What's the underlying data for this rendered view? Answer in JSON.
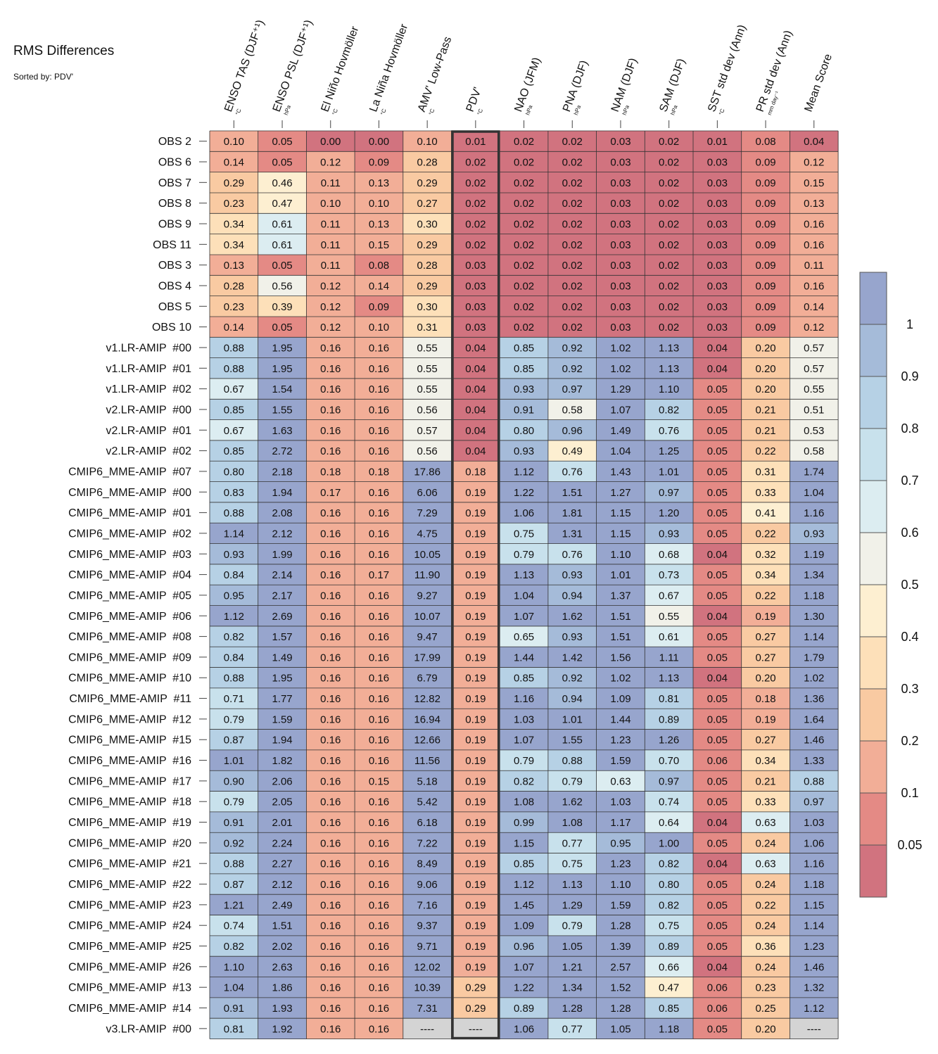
{
  "chart_data": {
    "type": "heatmap",
    "title": "RMS Differences",
    "subtitle": "Sorted by: PDV'",
    "highlight_column": "PDV'",
    "columns": [
      {
        "label": "ENSO TAS (DJF⁺¹)",
        "unit": "°C"
      },
      {
        "label": "ENSO PSL (DJF⁺¹)",
        "unit": "hPa"
      },
      {
        "label": "El Niño Hovmöller",
        "unit": "°C"
      },
      {
        "label": "La Niña Hovmöller",
        "unit": "°C"
      },
      {
        "label": "AMV' Low-Pass",
        "unit": "°C"
      },
      {
        "label": "PDV'",
        "unit": "°C"
      },
      {
        "label": "NAO (JFM)",
        "unit": "hPa"
      },
      {
        "label": "PNA (DJF)",
        "unit": "hPa"
      },
      {
        "label": "NAM (DJF)",
        "unit": "hPa"
      },
      {
        "label": "SAM (DJF)",
        "unit": "hPa"
      },
      {
        "label": "SST std dev (Ann)",
        "unit": "°C"
      },
      {
        "label": "PR std dev (Ann)",
        "unit": "mm day⁻¹"
      },
      {
        "label": "Mean Score",
        "unit": ""
      }
    ],
    "rows": [
      {
        "label": "OBS 2",
        "values": [
          "0.10",
          "0.05",
          "0.00",
          "0.00",
          "0.10",
          "0.01",
          "0.02",
          "0.02",
          "0.03",
          "0.02",
          "0.01",
          "0.08",
          "0.04"
        ]
      },
      {
        "label": "OBS 6",
        "values": [
          "0.14",
          "0.05",
          "0.12",
          "0.09",
          "0.28",
          "0.02",
          "0.02",
          "0.02",
          "0.03",
          "0.02",
          "0.03",
          "0.09",
          "0.12"
        ]
      },
      {
        "label": "OBS 7",
        "values": [
          "0.29",
          "0.46",
          "0.11",
          "0.13",
          "0.29",
          "0.02",
          "0.02",
          "0.02",
          "0.03",
          "0.02",
          "0.03",
          "0.09",
          "0.15"
        ]
      },
      {
        "label": "OBS 8",
        "values": [
          "0.23",
          "0.47",
          "0.10",
          "0.10",
          "0.27",
          "0.02",
          "0.02",
          "0.02",
          "0.03",
          "0.02",
          "0.03",
          "0.09",
          "0.13"
        ]
      },
      {
        "label": "OBS 9",
        "values": [
          "0.34",
          "0.61",
          "0.11",
          "0.13",
          "0.30",
          "0.02",
          "0.02",
          "0.02",
          "0.03",
          "0.02",
          "0.03",
          "0.09",
          "0.16"
        ]
      },
      {
        "label": "OBS 11",
        "values": [
          "0.34",
          "0.61",
          "0.11",
          "0.15",
          "0.29",
          "0.02",
          "0.02",
          "0.02",
          "0.03",
          "0.02",
          "0.03",
          "0.09",
          "0.16"
        ]
      },
      {
        "label": "OBS 3",
        "values": [
          "0.13",
          "0.05",
          "0.11",
          "0.08",
          "0.28",
          "0.03",
          "0.02",
          "0.02",
          "0.03",
          "0.02",
          "0.03",
          "0.09",
          "0.11"
        ]
      },
      {
        "label": "OBS 4",
        "values": [
          "0.28",
          "0.56",
          "0.12",
          "0.14",
          "0.29",
          "0.03",
          "0.02",
          "0.02",
          "0.03",
          "0.02",
          "0.03",
          "0.09",
          "0.16"
        ]
      },
      {
        "label": "OBS 5",
        "values": [
          "0.23",
          "0.39",
          "0.12",
          "0.09",
          "0.30",
          "0.03",
          "0.02",
          "0.02",
          "0.03",
          "0.02",
          "0.03",
          "0.09",
          "0.14"
        ]
      },
      {
        "label": "OBS 10",
        "values": [
          "0.14",
          "0.05",
          "0.12",
          "0.10",
          "0.31",
          "0.03",
          "0.02",
          "0.02",
          "0.03",
          "0.02",
          "0.03",
          "0.09",
          "0.12"
        ]
      },
      {
        "label": "v1.LR-AMIP  #00",
        "values": [
          "0.88",
          "1.95",
          "0.16",
          "0.16",
          "0.55",
          "0.04",
          "0.85",
          "0.92",
          "1.02",
          "1.13",
          "0.04",
          "0.20",
          "0.57"
        ]
      },
      {
        "label": "v1.LR-AMIP  #01",
        "values": [
          "0.88",
          "1.95",
          "0.16",
          "0.16",
          "0.55",
          "0.04",
          "0.85",
          "0.92",
          "1.02",
          "1.13",
          "0.04",
          "0.20",
          "0.57"
        ]
      },
      {
        "label": "v1.LR-AMIP  #02",
        "values": [
          "0.67",
          "1.54",
          "0.16",
          "0.16",
          "0.55",
          "0.04",
          "0.93",
          "0.97",
          "1.29",
          "1.10",
          "0.05",
          "0.20",
          "0.55"
        ]
      },
      {
        "label": "v2.LR-AMIP  #00",
        "values": [
          "0.85",
          "1.55",
          "0.16",
          "0.16",
          "0.56",
          "0.04",
          "0.91",
          "0.58",
          "1.07",
          "0.82",
          "0.05",
          "0.21",
          "0.51"
        ]
      },
      {
        "label": "v2.LR-AMIP  #01",
        "values": [
          "0.67",
          "1.63",
          "0.16",
          "0.16",
          "0.57",
          "0.04",
          "0.80",
          "0.96",
          "1.49",
          "0.76",
          "0.05",
          "0.21",
          "0.53"
        ]
      },
      {
        "label": "v2.LR-AMIP  #02",
        "values": [
          "0.85",
          "2.72",
          "0.16",
          "0.16",
          "0.56",
          "0.04",
          "0.93",
          "0.49",
          "1.04",
          "1.25",
          "0.05",
          "0.22",
          "0.58"
        ]
      },
      {
        "label": "CMIP6_MME-AMIP  #07",
        "values": [
          "0.80",
          "2.18",
          "0.18",
          "0.18",
          "17.86",
          "0.18",
          "1.12",
          "0.76",
          "1.43",
          "1.01",
          "0.05",
          "0.31",
          "1.74"
        ]
      },
      {
        "label": "CMIP6_MME-AMIP  #00",
        "values": [
          "0.83",
          "1.94",
          "0.17",
          "0.16",
          "6.06",
          "0.19",
          "1.22",
          "1.51",
          "1.27",
          "0.97",
          "0.05",
          "0.33",
          "1.04"
        ]
      },
      {
        "label": "CMIP6_MME-AMIP  #01",
        "values": [
          "0.88",
          "2.08",
          "0.16",
          "0.16",
          "7.29",
          "0.19",
          "1.06",
          "1.81",
          "1.15",
          "1.20",
          "0.05",
          "0.41",
          "1.16"
        ]
      },
      {
        "label": "CMIP6_MME-AMIP  #02",
        "values": [
          "1.14",
          "2.12",
          "0.16",
          "0.16",
          "4.75",
          "0.19",
          "0.75",
          "1.31",
          "1.15",
          "0.93",
          "0.05",
          "0.22",
          "0.93"
        ]
      },
      {
        "label": "CMIP6_MME-AMIP  #03",
        "values": [
          "0.93",
          "1.99",
          "0.16",
          "0.16",
          "10.05",
          "0.19",
          "0.79",
          "0.76",
          "1.10",
          "0.68",
          "0.04",
          "0.32",
          "1.19"
        ]
      },
      {
        "label": "CMIP6_MME-AMIP  #04",
        "values": [
          "0.84",
          "2.14",
          "0.16",
          "0.17",
          "11.90",
          "0.19",
          "1.13",
          "0.93",
          "1.01",
          "0.73",
          "0.05",
          "0.34",
          "1.34"
        ]
      },
      {
        "label": "CMIP6_MME-AMIP  #05",
        "values": [
          "0.95",
          "2.17",
          "0.16",
          "0.16",
          "9.27",
          "0.19",
          "1.04",
          "0.94",
          "1.37",
          "0.67",
          "0.05",
          "0.22",
          "1.18"
        ]
      },
      {
        "label": "CMIP6_MME-AMIP  #06",
        "values": [
          "1.12",
          "2.69",
          "0.16",
          "0.16",
          "10.07",
          "0.19",
          "1.07",
          "1.62",
          "1.51",
          "0.55",
          "0.04",
          "0.19",
          "1.30"
        ]
      },
      {
        "label": "CMIP6_MME-AMIP  #08",
        "values": [
          "0.82",
          "1.57",
          "0.16",
          "0.16",
          "9.47",
          "0.19",
          "0.65",
          "0.93",
          "1.51",
          "0.61",
          "0.05",
          "0.27",
          "1.14"
        ]
      },
      {
        "label": "CMIP6_MME-AMIP  #09",
        "values": [
          "0.84",
          "1.49",
          "0.16",
          "0.16",
          "17.99",
          "0.19",
          "1.44",
          "1.42",
          "1.56",
          "1.11",
          "0.05",
          "0.27",
          "1.79"
        ]
      },
      {
        "label": "CMIP6_MME-AMIP  #10",
        "values": [
          "0.88",
          "1.95",
          "0.16",
          "0.16",
          "6.79",
          "0.19",
          "0.85",
          "0.92",
          "1.02",
          "1.13",
          "0.04",
          "0.20",
          "1.02"
        ]
      },
      {
        "label": "CMIP6_MME-AMIP  #11",
        "values": [
          "0.71",
          "1.77",
          "0.16",
          "0.16",
          "12.82",
          "0.19",
          "1.16",
          "0.94",
          "1.09",
          "0.81",
          "0.05",
          "0.18",
          "1.36"
        ]
      },
      {
        "label": "CMIP6_MME-AMIP  #12",
        "values": [
          "0.79",
          "1.59",
          "0.16",
          "0.16",
          "16.94",
          "0.19",
          "1.03",
          "1.01",
          "1.44",
          "0.89",
          "0.05",
          "0.19",
          "1.64"
        ]
      },
      {
        "label": "CMIP6_MME-AMIP  #15",
        "values": [
          "0.87",
          "1.94",
          "0.16",
          "0.16",
          "12.66",
          "0.19",
          "1.07",
          "1.55",
          "1.23",
          "1.26",
          "0.05",
          "0.27",
          "1.46"
        ]
      },
      {
        "label": "CMIP6_MME-AMIP  #16",
        "values": [
          "1.01",
          "1.82",
          "0.16",
          "0.16",
          "11.56",
          "0.19",
          "0.79",
          "0.88",
          "1.59",
          "0.70",
          "0.06",
          "0.34",
          "1.33"
        ]
      },
      {
        "label": "CMIP6_MME-AMIP  #17",
        "values": [
          "0.90",
          "2.06",
          "0.16",
          "0.15",
          "5.18",
          "0.19",
          "0.82",
          "0.79",
          "0.63",
          "0.97",
          "0.05",
          "0.21",
          "0.88"
        ]
      },
      {
        "label": "CMIP6_MME-AMIP  #18",
        "values": [
          "0.79",
          "2.05",
          "0.16",
          "0.16",
          "5.42",
          "0.19",
          "1.08",
          "1.62",
          "1.03",
          "0.74",
          "0.05",
          "0.33",
          "0.97"
        ]
      },
      {
        "label": "CMIP6_MME-AMIP  #19",
        "values": [
          "0.91",
          "2.01",
          "0.16",
          "0.16",
          "6.18",
          "0.19",
          "0.99",
          "1.08",
          "1.17",
          "0.64",
          "0.04",
          "0.63",
          "1.03"
        ]
      },
      {
        "label": "CMIP6_MME-AMIP  #20",
        "values": [
          "0.92",
          "2.24",
          "0.16",
          "0.16",
          "7.22",
          "0.19",
          "1.15",
          "0.77",
          "0.95",
          "1.00",
          "0.05",
          "0.24",
          "1.06"
        ]
      },
      {
        "label": "CMIP6_MME-AMIP  #21",
        "values": [
          "0.88",
          "2.27",
          "0.16",
          "0.16",
          "8.49",
          "0.19",
          "0.85",
          "0.75",
          "1.23",
          "0.82",
          "0.04",
          "0.63",
          "1.16"
        ]
      },
      {
        "label": "CMIP6_MME-AMIP  #22",
        "values": [
          "0.87",
          "2.12",
          "0.16",
          "0.16",
          "9.06",
          "0.19",
          "1.12",
          "1.13",
          "1.10",
          "0.80",
          "0.05",
          "0.24",
          "1.18"
        ]
      },
      {
        "label": "CMIP6_MME-AMIP  #23",
        "values": [
          "1.21",
          "2.49",
          "0.16",
          "0.16",
          "7.16",
          "0.19",
          "1.45",
          "1.29",
          "1.59",
          "0.82",
          "0.05",
          "0.22",
          "1.15"
        ]
      },
      {
        "label": "CMIP6_MME-AMIP  #24",
        "values": [
          "0.74",
          "1.51",
          "0.16",
          "0.16",
          "9.37",
          "0.19",
          "1.09",
          "0.79",
          "1.28",
          "0.75",
          "0.05",
          "0.24",
          "1.14"
        ]
      },
      {
        "label": "CMIP6_MME-AMIP  #25",
        "values": [
          "0.82",
          "2.02",
          "0.16",
          "0.16",
          "9.71",
          "0.19",
          "0.96",
          "1.05",
          "1.39",
          "0.89",
          "0.05",
          "0.36",
          "1.23"
        ]
      },
      {
        "label": "CMIP6_MME-AMIP  #26",
        "values": [
          "1.10",
          "2.63",
          "0.16",
          "0.16",
          "12.02",
          "0.19",
          "1.07",
          "1.21",
          "2.57",
          "0.66",
          "0.04",
          "0.24",
          "1.46"
        ]
      },
      {
        "label": "CMIP6_MME-AMIP  #13",
        "values": [
          "1.04",
          "1.86",
          "0.16",
          "0.16",
          "10.39",
          "0.29",
          "1.22",
          "1.34",
          "1.52",
          "0.47",
          "0.06",
          "0.23",
          "1.32"
        ]
      },
      {
        "label": "CMIP6_MME-AMIP  #14",
        "values": [
          "0.91",
          "1.93",
          "0.16",
          "0.16",
          "7.31",
          "0.29",
          "0.89",
          "1.28",
          "1.28",
          "0.85",
          "0.06",
          "0.25",
          "1.12"
        ]
      },
      {
        "label": "v3.LR-AMIP  #00",
        "values": [
          "0.81",
          "1.92",
          "0.16",
          "0.16",
          "----",
          "----",
          "1.06",
          "0.77",
          "1.05",
          "1.18",
          "0.05",
          "0.20",
          "----"
        ]
      }
    ],
    "colorbar": {
      "tick_labels": [
        "1",
        "0.9",
        "0.8",
        "0.7",
        "0.6",
        "0.5",
        "0.4",
        "0.3",
        "0.2",
        "0.1",
        "0.05"
      ],
      "bins": [
        {
          "min": 1.0,
          "max": null,
          "color": "#97a5cd"
        },
        {
          "min": 0.9,
          "max": 1.0,
          "color": "#a5bbd9"
        },
        {
          "min": 0.8,
          "max": 0.9,
          "color": "#b6d1e5"
        },
        {
          "min": 0.7,
          "max": 0.8,
          "color": "#c8e1ec"
        },
        {
          "min": 0.6,
          "max": 0.7,
          "color": "#dcedf1"
        },
        {
          "min": 0.5,
          "max": 0.6,
          "color": "#f1f1e9"
        },
        {
          "min": 0.4,
          "max": 0.5,
          "color": "#fdefd1"
        },
        {
          "min": 0.3,
          "max": 0.4,
          "color": "#fde0b9"
        },
        {
          "min": 0.2,
          "max": 0.3,
          "color": "#f9caa2"
        },
        {
          "min": 0.1,
          "max": 0.2,
          "color": "#f2ae97"
        },
        {
          "min": 0.05,
          "max": 0.1,
          "color": "#e48a85"
        },
        {
          "min": null,
          "max": 0.05,
          "color": "#d1737f"
        }
      ],
      "missing_color": "#d4d4d4"
    }
  }
}
